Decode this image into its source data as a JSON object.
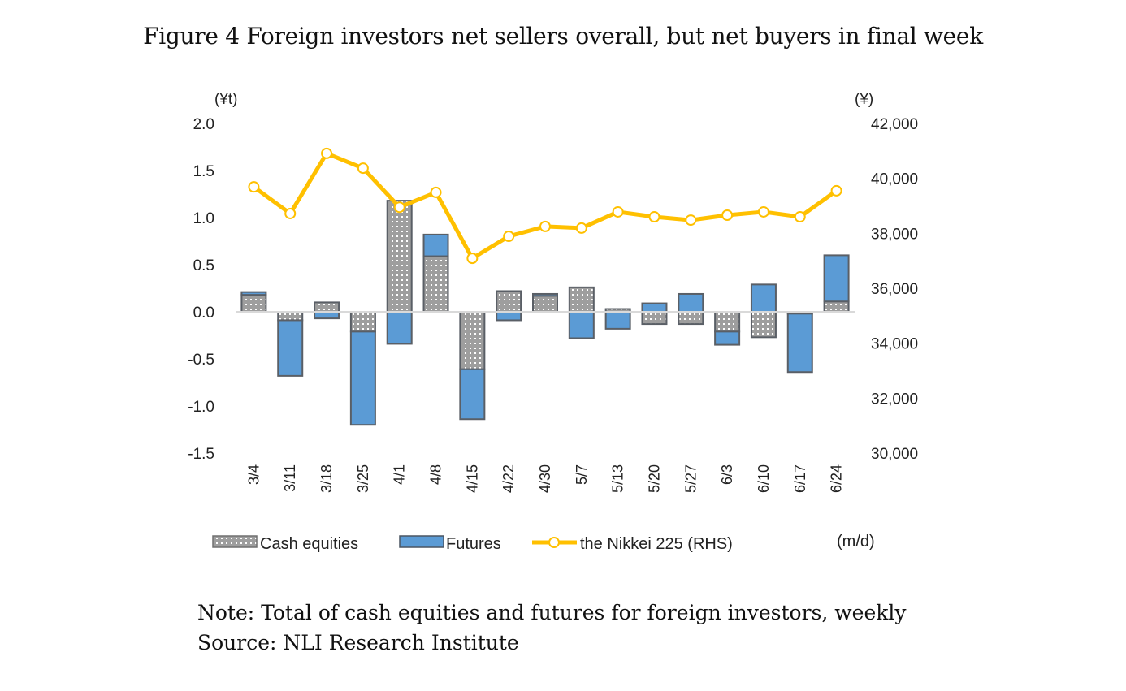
{
  "chart_data": {
    "type": "bar",
    "title": "Figure 4 Foreign investors net sellers overall, but net buyers in final week",
    "stacked": true,
    "categories": [
      "3/4",
      "3/11",
      "3/18",
      "3/25",
      "4/1",
      "4/8",
      "4/15",
      "4/22",
      "4/30",
      "5/7",
      "5/13",
      "5/20",
      "5/27",
      "6/3",
      "6/10",
      "6/17",
      "6/24"
    ],
    "series": [
      {
        "name": "Cash equities",
        "kind": "bar",
        "axis": "left",
        "color": "#9e9e9e",
        "pattern": "dotted",
        "values": [
          0.18,
          -0.09,
          0.1,
          -0.21,
          1.18,
          0.59,
          -0.61,
          0.22,
          0.17,
          0.26,
          0.03,
          -0.13,
          -0.13,
          -0.21,
          -0.27,
          -0.02,
          0.11
        ]
      },
      {
        "name": "Futures",
        "kind": "bar",
        "axis": "left",
        "color": "#5b9bd5",
        "values": [
          0.03,
          -0.59,
          -0.07,
          -0.99,
          -0.34,
          0.23,
          -0.53,
          -0.09,
          0.02,
          -0.28,
          -0.18,
          0.09,
          0.19,
          -0.14,
          0.29,
          -0.62,
          0.49
        ]
      },
      {
        "name": "the Nikkei 225 (RHS)",
        "kind": "line",
        "axis": "right",
        "color": "#ffc000",
        "values": [
          39690,
          38720,
          40910,
          40370,
          38950,
          39490,
          37090,
          37890,
          38250,
          38190,
          38780,
          38600,
          38480,
          38660,
          38780,
          38600,
          39550
        ]
      }
    ],
    "left_axis": {
      "unit_label": "(¥t)",
      "range": [
        -1.5,
        2.0
      ],
      "ticks": [
        "2.0",
        "1.5",
        "1.0",
        "0.5",
        "0.0",
        "-0.5",
        "-1.0",
        "-1.5"
      ],
      "tick_values": [
        2.0,
        1.5,
        1.0,
        0.5,
        0.0,
        -0.5,
        -1.0,
        -1.5
      ]
    },
    "right_axis": {
      "unit_label": "(¥)",
      "range": [
        30000,
        42000
      ],
      "ticks": [
        "42,000",
        "40,000",
        "38,000",
        "36,000",
        "34,000",
        "32,000",
        "30,000"
      ],
      "tick_values": [
        42000,
        40000,
        38000,
        36000,
        34000,
        32000,
        30000
      ]
    },
    "xlabel": "(m/d)",
    "grid": false,
    "legend_position": "bottom"
  },
  "notes": {
    "note": "Note: Total of cash equities and futures for foreign investors, weekly",
    "source": "Source: NLI Research Institute"
  }
}
